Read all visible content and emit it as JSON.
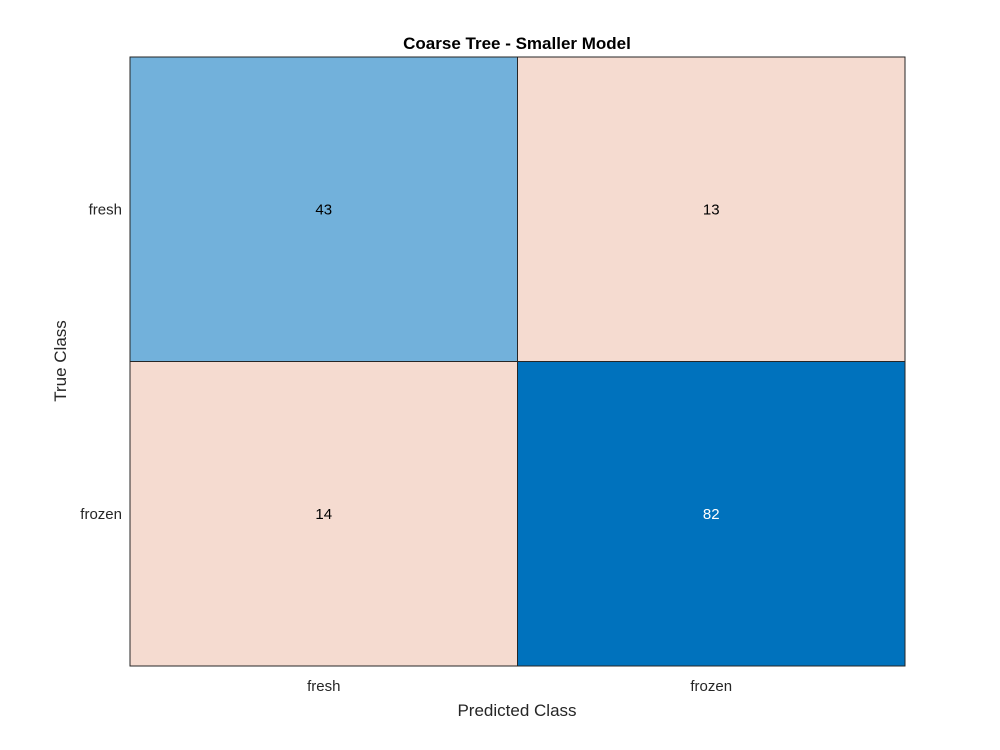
{
  "chart_data": {
    "type": "heatmap",
    "title": "Coarse Tree - Smaller Model",
    "xlabel": "Predicted Class",
    "ylabel": "True Class",
    "x_categories": [
      "fresh",
      "frozen"
    ],
    "y_categories": [
      "fresh",
      "frozen"
    ],
    "values": [
      [
        43,
        13
      ],
      [
        14,
        82
      ]
    ],
    "colors": {
      "diagonal_low": "#72b1db",
      "diagonal_high": "#0072bd",
      "off_diagonal": "#f5dbd0",
      "border": "#262626",
      "text_dark": "#000000",
      "text_light": "#ffffff"
    }
  }
}
